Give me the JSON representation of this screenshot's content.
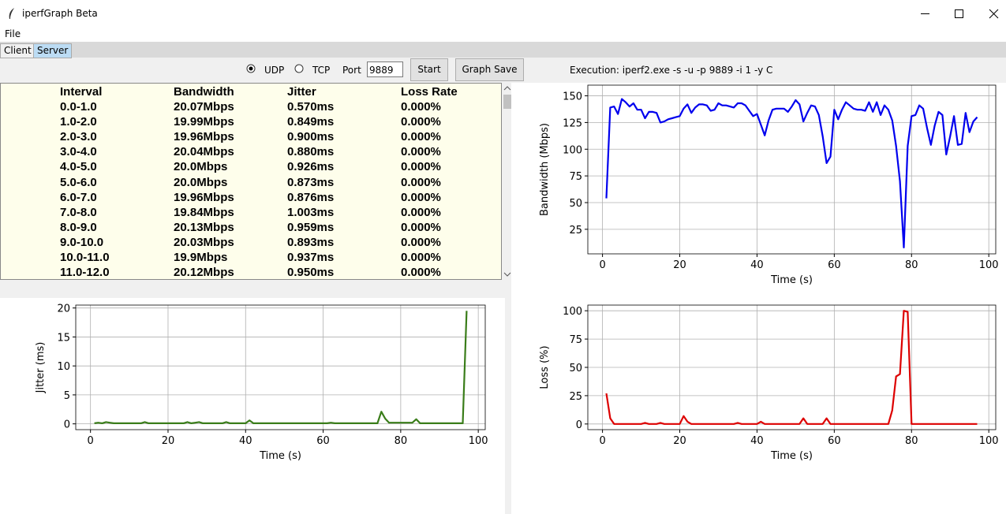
{
  "window": {
    "title": "iperfGraph Beta"
  },
  "menu": [
    "File"
  ],
  "tabs": [
    "Client",
    "Server"
  ],
  "controls": {
    "protocols": [
      "UDP",
      "TCP"
    ],
    "port_label": "Port",
    "port": "9889",
    "buttons": [
      "Start",
      "Graph Save"
    ],
    "execution": "Execution: iperf2.exe -s -u -p 9889 -i 1 -y C"
  },
  "table": {
    "columns": [
      "Interval",
      "Bandwidth",
      "Jitter",
      "Loss Rate"
    ],
    "rows": [
      [
        "0.0-1.0",
        "20.07Mbps",
        "0.570ms",
        "0.000%"
      ],
      [
        "1.0-2.0",
        "19.99Mbps",
        "0.849ms",
        "0.000%"
      ],
      [
        "2.0-3.0",
        "19.96Mbps",
        "0.900ms",
        "0.000%"
      ],
      [
        "3.0-4.0",
        "20.04Mbps",
        "0.880ms",
        "0.000%"
      ],
      [
        "4.0-5.0",
        "20.0Mbps",
        "0.926ms",
        "0.000%"
      ],
      [
        "5.0-6.0",
        "20.0Mbps",
        "0.873ms",
        "0.000%"
      ],
      [
        "6.0-7.0",
        "19.96Mbps",
        "0.876ms",
        "0.000%"
      ],
      [
        "7.0-8.0",
        "19.84Mbps",
        "1.003ms",
        "0.000%"
      ],
      [
        "8.0-9.0",
        "20.13Mbps",
        "0.959ms",
        "0.000%"
      ],
      [
        "9.0-10.0",
        "20.03Mbps",
        "0.893ms",
        "0.000%"
      ],
      [
        "10.0-11.0",
        "19.9Mbps",
        "0.937ms",
        "0.000%"
      ],
      [
        "11.0-12.0",
        "20.12Mbps",
        "0.950ms",
        "0.000%"
      ]
    ]
  },
  "chart_data": [
    {
      "type": "line",
      "xlabel": "Time (s)",
      "ylabel": "Bandwidth (Mbps)",
      "color": "#0000ee",
      "grid": true,
      "x": [
        1,
        2,
        3,
        4,
        5,
        6,
        7,
        8,
        9,
        10,
        11,
        12,
        13,
        14,
        15,
        16,
        17,
        18,
        19,
        20,
        21,
        22,
        23,
        24,
        25,
        26,
        27,
        28,
        29,
        30,
        31,
        32,
        33,
        34,
        35,
        36,
        37,
        38,
        39,
        40,
        41,
        42,
        43,
        44,
        45,
        46,
        47,
        48,
        49,
        50,
        51,
        52,
        53,
        54,
        55,
        56,
        57,
        58,
        59,
        60,
        61,
        62,
        63,
        64,
        65,
        66,
        67,
        68,
        69,
        70,
        71,
        72,
        73,
        74,
        75,
        76,
        77,
        78,
        79,
        80,
        81,
        82,
        83,
        84,
        85,
        86,
        87,
        88,
        89,
        90,
        91,
        92,
        93,
        94,
        95,
        96,
        97
      ],
      "values": [
        54,
        139,
        140,
        133,
        147,
        144,
        140,
        143,
        137,
        137,
        129,
        135,
        135,
        134,
        125,
        126,
        128,
        129,
        130,
        131,
        138,
        142,
        134,
        139,
        142,
        142,
        141,
        136,
        137,
        143,
        141,
        141,
        140,
        139,
        143,
        143,
        141,
        136,
        131,
        133,
        123,
        113,
        127,
        137,
        138,
        138,
        138,
        135,
        140,
        146,
        142,
        126,
        134,
        141,
        140,
        132,
        112,
        87,
        93,
        137,
        128,
        137,
        144,
        141,
        138,
        137,
        137,
        136,
        144,
        135,
        144,
        132,
        141,
        137,
        127,
        103,
        70,
        8,
        103,
        131,
        132,
        141,
        138,
        120,
        104,
        122,
        135,
        132,
        95,
        112,
        131,
        104,
        105,
        134,
        116,
        126,
        130
      ],
      "xlim": [
        -3.8,
        101.8
      ],
      "xticks": [
        0,
        20,
        40,
        60,
        80,
        100
      ],
      "ylim": [
        2,
        160
      ],
      "yticks": [
        25,
        50,
        75,
        100,
        125,
        150
      ]
    },
    {
      "type": "line",
      "xlabel": "Time (s)",
      "ylabel": "Jitter (ms)",
      "color": "#3a7d1a",
      "grid": true,
      "x": [
        1,
        2,
        3,
        4,
        5,
        6,
        13,
        14,
        15,
        24,
        25,
        26,
        27,
        28,
        29,
        34,
        35,
        36,
        40,
        41,
        42,
        61,
        62,
        63,
        74,
        75,
        76,
        77,
        83,
        84,
        85,
        96,
        97
      ],
      "values": [
        0.1,
        0.2,
        0.1,
        0.3,
        0.2,
        0.1,
        0.1,
        0.3,
        0.1,
        0.1,
        0.3,
        0.1,
        0.2,
        0.3,
        0.1,
        0.1,
        0.3,
        0.1,
        0.1,
        0.6,
        0.1,
        0.1,
        0.2,
        0.1,
        0.1,
        2.1,
        0.9,
        0.2,
        0.2,
        0.8,
        0.1,
        0.1,
        19.5
      ],
      "xlim": [
        -3.8,
        101.8
      ],
      "xticks": [
        0,
        20,
        40,
        60,
        80,
        100
      ],
      "ylim": [
        -1,
        20.5
      ],
      "yticks": [
        0,
        5,
        10,
        15,
        20
      ]
    },
    {
      "type": "line",
      "xlabel": "Time (s)",
      "ylabel": "Loss (%)",
      "color": "#dd0000",
      "grid": true,
      "x": [
        1,
        2,
        3,
        10,
        11,
        12,
        14,
        15,
        16,
        20,
        21,
        22,
        23,
        34,
        35,
        36,
        40,
        41,
        42,
        51,
        52,
        53,
        57,
        58,
        59,
        74,
        75,
        76,
        77,
        78,
        79,
        80,
        97
      ],
      "values": [
        27,
        5,
        0,
        0,
        1,
        0,
        0,
        1,
        0,
        0,
        7,
        2,
        0,
        0,
        1,
        0,
        0,
        2,
        0,
        0,
        5,
        0,
        0,
        5,
        0,
        0,
        12,
        42,
        44,
        100,
        99,
        0,
        0
      ],
      "xlim": [
        -3.8,
        101.8
      ],
      "xticks": [
        0,
        20,
        40,
        60,
        80,
        100
      ],
      "ylim": [
        -5,
        105
      ],
      "yticks": [
        0,
        25,
        50,
        75,
        100
      ]
    }
  ]
}
